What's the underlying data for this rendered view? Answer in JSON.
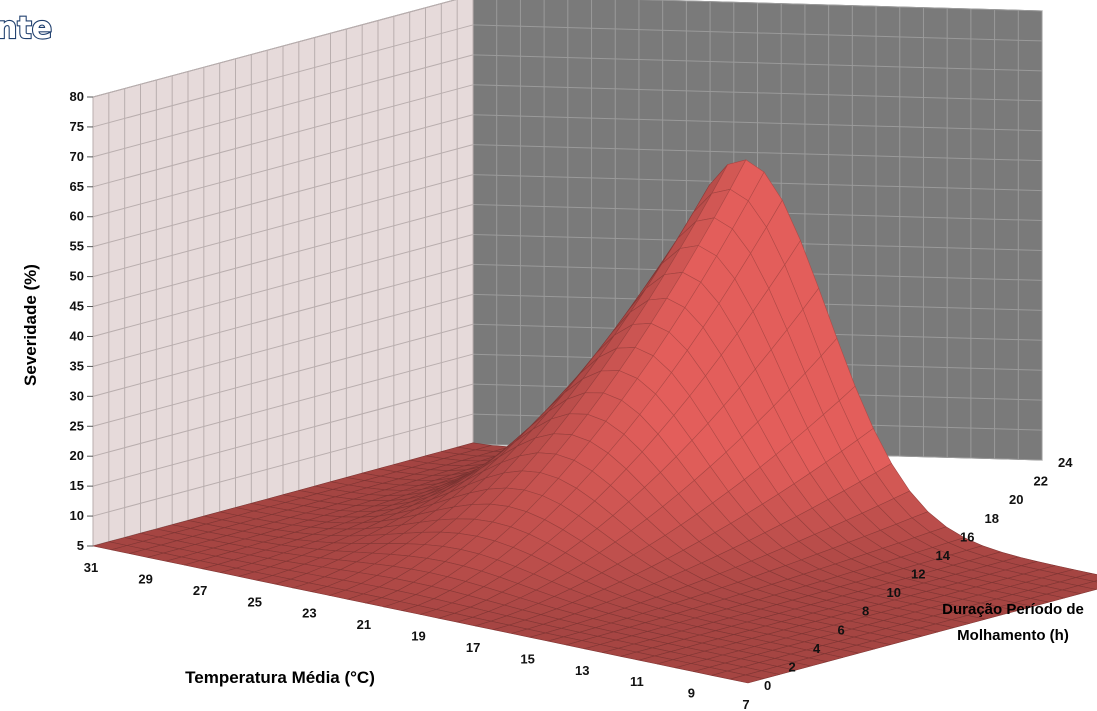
{
  "header": {
    "partial_title": "nte"
  },
  "chart_data": {
    "type": "surface",
    "z_axis": {
      "label": "Severidade (%)",
      "min": 5,
      "max": 80,
      "step": 5,
      "ticks": [
        "80",
        "75",
        "70",
        "65",
        "60",
        "55",
        "50",
        "45",
        "40",
        "35",
        "30",
        "25",
        "20",
        "15",
        "10",
        "5"
      ]
    },
    "x_axis": {
      "label": "Temperatura Média (°C)",
      "ticks": [
        "31",
        "29",
        "27",
        "25",
        "23",
        "21",
        "19",
        "17",
        "15",
        "13",
        "11",
        "9",
        "7"
      ]
    },
    "y_axis": {
      "label_line1": "Duração Período de",
      "label_line2": "Molhamento (h)",
      "ticks": [
        "0",
        "2",
        "4",
        "6",
        "8",
        "10",
        "12",
        "14",
        "16",
        "18",
        "20",
        "22",
        "24"
      ]
    },
    "surface_color": "#c0504d",
    "wall_colors": {
      "left": "#e6dada",
      "back": "#7a7a7a"
    },
    "peak": {
      "temperature": 21,
      "wetness_hours": 24,
      "severity": 62
    }
  }
}
